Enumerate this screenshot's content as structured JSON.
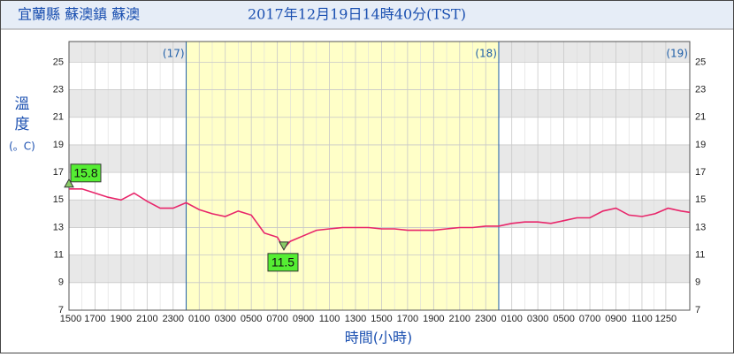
{
  "chart_data": {
    "type": "line",
    "title": "宜蘭縣 蘇澳鎮 蘇澳",
    "subtitle": "2017年12月19日14時40分(TST)",
    "ylabel_lines": [
      "溫",
      "度",
      "(。C)"
    ],
    "xlabel": "時間(小時)",
    "xlim": [
      0,
      47.67
    ],
    "ylim": [
      7,
      26.5
    ],
    "yticks": [
      7,
      9,
      11,
      13,
      15,
      17,
      19,
      21,
      23,
      25
    ],
    "xticks": [
      {
        "value": 0,
        "label": "1500"
      },
      {
        "value": 2,
        "label": "1700"
      },
      {
        "value": 4,
        "label": "1900"
      },
      {
        "value": 6,
        "label": "2100"
      },
      {
        "value": 8,
        "label": "2300"
      },
      {
        "value": 10,
        "label": "0100"
      },
      {
        "value": 12,
        "label": "0300"
      },
      {
        "value": 14,
        "label": "0500"
      },
      {
        "value": 16,
        "label": "0700"
      },
      {
        "value": 18,
        "label": "0900"
      },
      {
        "value": 20,
        "label": "1100"
      },
      {
        "value": 22,
        "label": "1300"
      },
      {
        "value": 24,
        "label": "1500"
      },
      {
        "value": 26,
        "label": "1700"
      },
      {
        "value": 28,
        "label": "1900"
      },
      {
        "value": 30,
        "label": "2100"
      },
      {
        "value": 32,
        "label": "2300"
      },
      {
        "value": 34,
        "label": "0100"
      },
      {
        "value": 36,
        "label": "0300"
      },
      {
        "value": 38,
        "label": "0500"
      },
      {
        "value": 40,
        "label": "0700"
      },
      {
        "value": 42,
        "label": "0900"
      },
      {
        "value": 44,
        "label": "1100"
      },
      {
        "value": 45.83,
        "label": "1250"
      }
    ],
    "day_markers": [
      {
        "label": "(17)",
        "x": 9
      },
      {
        "label": "(18)",
        "x": 33
      },
      {
        "label": "(19)",
        "x": 47.67
      }
    ],
    "grid": true,
    "series": [
      {
        "name": "溫度",
        "color": "#e8256a",
        "x": [
          0,
          1,
          2,
          3,
          4,
          5,
          6,
          7,
          8,
          9,
          10,
          11,
          12,
          13,
          14,
          15,
          16,
          16.5,
          17,
          18,
          19,
          20,
          21,
          22,
          23,
          24,
          25,
          26,
          27,
          28,
          29,
          30,
          31,
          32,
          33,
          34,
          35,
          36,
          37,
          38,
          39,
          40,
          41,
          42,
          43,
          44,
          45,
          46,
          47,
          47.67
        ],
        "values": [
          15.8,
          15.8,
          15.5,
          15.2,
          15.0,
          15.5,
          14.9,
          14.4,
          14.4,
          14.8,
          14.3,
          14.0,
          13.8,
          14.2,
          13.9,
          12.6,
          12.3,
          11.5,
          12.0,
          12.4,
          12.8,
          12.9,
          13.0,
          13.0,
          13.0,
          12.9,
          12.9,
          12.8,
          12.8,
          12.8,
          12.9,
          13.0,
          13.0,
          13.1,
          13.1,
          13.3,
          13.4,
          13.4,
          13.3,
          13.5,
          13.7,
          13.7,
          14.2,
          14.4,
          13.9,
          13.8,
          14.0,
          14.4,
          14.2,
          14.1
        ]
      }
    ],
    "max": {
      "x": 0,
      "value": 15.8
    },
    "min": {
      "x": 16.5,
      "value": 11.5
    }
  }
}
